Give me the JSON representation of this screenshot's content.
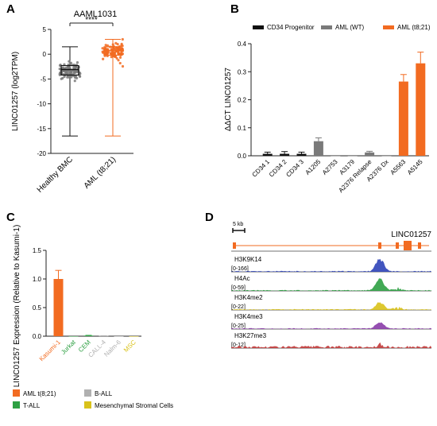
{
  "colors": {
    "black": "#111111",
    "grey": "#7a7a7a",
    "orange": "#f26b21",
    "green": "#2ea043",
    "light_grey": "#b0b0b0",
    "yellow": "#d9c21a",
    "blue": "#2e43b8",
    "purple": "#8a3ca8",
    "red": "#c23a3a"
  },
  "chart_data": [
    {
      "panel": "A",
      "type": "box",
      "title": "AAML1031",
      "ylabel": "LINC01257 (log2TPM)",
      "ylim": [
        -20,
        5
      ],
      "yticks": [
        5,
        0,
        -5,
        -10,
        -15,
        -20
      ],
      "categories": [
        "Healthy BMC",
        "AML (t8;21)"
      ],
      "boxes": [
        {
          "name": "Healthy BMC",
          "min": -16.5,
          "q1": -4.2,
          "median": -3.1,
          "q3": -2.3,
          "max": 1.5
        },
        {
          "name": "AML (t8;21)",
          "min": -16.5,
          "q1": -0.2,
          "median": 0.7,
          "q3": 1.5,
          "max": 3.0
        }
      ],
      "significance": "****"
    },
    {
      "panel": "B",
      "type": "bar",
      "ylabel": "ΔΔCT LINC01257",
      "ylim": [
        0,
        0.4
      ],
      "yticks": [
        0.0,
        0.1,
        0.2,
        0.3,
        0.4
      ],
      "legend": [
        "CD34 Progenitor",
        "AML (WT)",
        "AML (t8;21)"
      ],
      "categories": [
        "CD34 1",
        "CD34 2",
        "CD34 3",
        "A1205",
        "A2753",
        "A3179",
        "A2376 Relapse",
        "A2376 Dx",
        "A5563",
        "A5145"
      ],
      "groups": [
        0,
        0,
        0,
        1,
        1,
        1,
        1,
        1,
        2,
        2
      ],
      "values": [
        0.007,
        0.007,
        0.007,
        0.052,
        0.0,
        0.0,
        0.012,
        0.0,
        0.265,
        0.33
      ],
      "errors": [
        0.006,
        0.008,
        0.006,
        0.012,
        0.0,
        0.0,
        0.004,
        0.0,
        0.025,
        0.04
      ]
    },
    {
      "panel": "C",
      "type": "bar",
      "ylabel": "LINC01257 Expression (Relative to Kasumi-1)",
      "ylim": [
        0,
        1.5
      ],
      "yticks": [
        0.0,
        0.5,
        1.0,
        1.5
      ],
      "categories": [
        "Kasumi-1",
        "Jurkat",
        "CEM",
        "CALL-4",
        "Nalm-6",
        "MSC"
      ],
      "groups": [
        "AML t(8;21)",
        "T-ALL",
        "T-ALL",
        "B-ALL",
        "B-ALL",
        "Mesenchymal Stromal Cells"
      ],
      "values": [
        1.0,
        0.0,
        0.01,
        0.005,
        0.0,
        0.0
      ],
      "errors": [
        0.15,
        0.0,
        0.005,
        0.003,
        0.0,
        0.0
      ],
      "legend": [
        "AML t(8;21)",
        "B-ALL",
        "T-ALL",
        "Mesenchymal Stromal Cells"
      ]
    },
    {
      "panel": "D",
      "type": "genome-tracks",
      "gene": "LINC01257",
      "scale_bar": "5 kb",
      "tracks": [
        {
          "name": "H3K9K14",
          "range": "[0-166]",
          "peak": 0.9
        },
        {
          "name": "H4Ac",
          "range": "[0-59]",
          "peak": 0.85
        },
        {
          "name": "H3K4me2",
          "range": "[0-22]",
          "peak": 0.55
        },
        {
          "name": "H3K4me3",
          "range": "[0-25]",
          "peak": 0.45
        },
        {
          "name": "H3K27me3",
          "range": "[0-12]",
          "peak": 0.25
        }
      ]
    }
  ]
}
